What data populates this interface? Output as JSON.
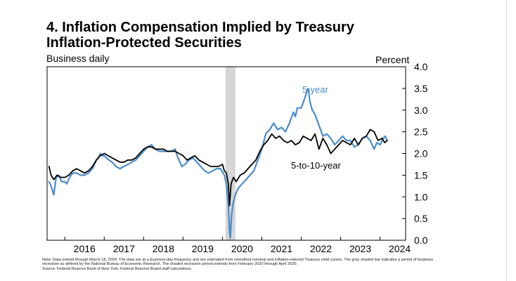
{
  "title": "4. Inflation Compensation Implied by Treasury Inflation-Protected Securities",
  "subtitle": "Business daily",
  "y_unit_label": "Percent",
  "notes": {
    "line1": "Note: Data extend through March 18, 2024. The data are at a business-day frequency and are estimated from smoothed nominal and inflation-indexed Treasury yield curves. The gray shaded bar indicates a period of business recession as defined by the National Bureau of Economic Research. The shaded recession period extends from February 2020 through April 2020.",
    "line2": "Source: Federal Reserve Bank of New York; Federal Reserve Board staff calculations."
  },
  "colors": {
    "five_year": "#4a8ccc",
    "five_to_ten_year": "#000000",
    "recession": "#d6d6d6"
  },
  "chart_data": {
    "type": "line",
    "ylim": [
      0,
      4
    ],
    "yticks": [
      "0.0",
      "0.5",
      "1.0",
      "1.5",
      "2.0",
      "2.5",
      "3.0",
      "3.5",
      "4.0"
    ],
    "xlim": [
      2015.55,
      2024.65
    ],
    "xticks": [
      "2016",
      "2017",
      "2018",
      "2019",
      "2020",
      "2021",
      "2022",
      "2023",
      "2024"
    ],
    "recession": [
      2020.08,
      2020.33
    ],
    "grid": false,
    "series": [
      {
        "name": "5-year",
        "x": [
          2015.6,
          2015.65,
          2015.72,
          2015.78,
          2015.85,
          2015.92,
          2016.0,
          2016.05,
          2016.12,
          2016.2,
          2016.3,
          2016.4,
          2016.5,
          2016.6,
          2016.7,
          2016.8,
          2016.85,
          2016.9,
          2016.95,
          2017.0,
          2017.05,
          2017.12,
          2017.2,
          2017.3,
          2017.4,
          2017.5,
          2017.6,
          2017.7,
          2017.8,
          2017.9,
          2018.0,
          2018.1,
          2018.2,
          2018.3,
          2018.4,
          2018.5,
          2018.6,
          2018.7,
          2018.8,
          2018.85,
          2018.9,
          2018.97,
          2019.05,
          2019.15,
          2019.25,
          2019.35,
          2019.45,
          2019.55,
          2019.65,
          2019.75,
          2019.85,
          2019.95,
          2020.05,
          2020.1,
          2020.15,
          2020.18,
          2020.2,
          2020.23,
          2020.27,
          2020.33,
          2020.4,
          2020.5,
          2020.6,
          2020.7,
          2020.8,
          2020.9,
          2021.0,
          2021.1,
          2021.2,
          2021.3,
          2021.4,
          2021.5,
          2021.6,
          2021.7,
          2021.8,
          2021.85,
          2021.9,
          2022.0,
          2022.1,
          2022.15,
          2022.18,
          2022.22,
          2022.28,
          2022.35,
          2022.45,
          2022.55,
          2022.65,
          2022.75,
          2022.85,
          2022.95,
          2023.05,
          2023.15,
          2023.25,
          2023.35,
          2023.45,
          2023.55,
          2023.65,
          2023.75,
          2023.85,
          2023.92,
          2024.0,
          2024.08,
          2024.13,
          2024.18
        ],
        "y": [
          1.35,
          1.25,
          1.05,
          1.45,
          1.5,
          1.35,
          1.35,
          1.3,
          1.45,
          1.55,
          1.55,
          1.5,
          1.5,
          1.55,
          1.65,
          1.85,
          1.9,
          2.0,
          1.95,
          1.95,
          1.9,
          1.85,
          1.8,
          1.7,
          1.65,
          1.7,
          1.75,
          1.8,
          1.85,
          1.95,
          2.05,
          2.15,
          2.2,
          2.1,
          2.05,
          2.05,
          2.05,
          2.05,
          2.1,
          1.95,
          1.85,
          1.7,
          1.75,
          1.85,
          1.9,
          1.8,
          1.7,
          1.6,
          1.55,
          1.6,
          1.65,
          1.65,
          1.5,
          1.3,
          0.8,
          0.2,
          0.05,
          0.55,
          0.85,
          1.05,
          1.2,
          1.3,
          1.4,
          1.5,
          1.6,
          1.85,
          2.1,
          2.45,
          2.55,
          2.7,
          2.55,
          2.6,
          2.5,
          2.7,
          2.95,
          2.85,
          3.05,
          3.05,
          3.3,
          3.45,
          3.5,
          3.2,
          3.0,
          2.9,
          2.65,
          2.4,
          2.45,
          2.35,
          2.2,
          2.3,
          2.4,
          2.3,
          2.3,
          2.15,
          2.2,
          2.35,
          2.4,
          2.3,
          2.1,
          2.25,
          2.2,
          2.35,
          2.4,
          2.3
        ]
      },
      {
        "name": "5-to-10-year",
        "x": [
          2015.6,
          2015.65,
          2015.72,
          2015.8,
          2015.9,
          2016.0,
          2016.1,
          2016.2,
          2016.3,
          2016.4,
          2016.5,
          2016.6,
          2016.7,
          2016.8,
          2016.9,
          2017.0,
          2017.1,
          2017.2,
          2017.3,
          2017.4,
          2017.5,
          2017.6,
          2017.7,
          2017.8,
          2017.9,
          2018.0,
          2018.1,
          2018.2,
          2018.3,
          2018.4,
          2018.5,
          2018.6,
          2018.7,
          2018.8,
          2018.9,
          2019.0,
          2019.1,
          2019.2,
          2019.3,
          2019.4,
          2019.5,
          2019.6,
          2019.7,
          2019.8,
          2019.9,
          2020.0,
          2020.05,
          2020.1,
          2020.15,
          2020.18,
          2020.22,
          2020.28,
          2020.35,
          2020.45,
          2020.55,
          2020.65,
          2020.75,
          2020.85,
          2020.95,
          2021.05,
          2021.15,
          2021.25,
          2021.35,
          2021.45,
          2021.55,
          2021.65,
          2021.75,
          2021.85,
          2021.95,
          2022.05,
          2022.15,
          2022.25,
          2022.35,
          2022.45,
          2022.55,
          2022.65,
          2022.75,
          2022.85,
          2022.95,
          2023.05,
          2023.15,
          2023.25,
          2023.35,
          2023.45,
          2023.55,
          2023.65,
          2023.75,
          2023.85,
          2023.95,
          2024.05,
          2024.12,
          2024.18
        ],
        "y": [
          1.7,
          1.5,
          1.4,
          1.5,
          1.45,
          1.45,
          1.5,
          1.6,
          1.65,
          1.6,
          1.55,
          1.6,
          1.7,
          1.85,
          1.95,
          2.0,
          1.95,
          1.9,
          1.85,
          1.8,
          1.8,
          1.85,
          1.85,
          1.9,
          2.0,
          2.1,
          2.15,
          2.15,
          2.1,
          2.1,
          2.1,
          2.05,
          2.05,
          2.05,
          2.0,
          1.95,
          1.85,
          1.9,
          1.95,
          1.85,
          1.8,
          1.75,
          1.7,
          1.7,
          1.7,
          1.75,
          1.6,
          1.55,
          1.3,
          0.8,
          1.3,
          1.45,
          1.35,
          1.5,
          1.55,
          1.65,
          1.75,
          1.85,
          2.05,
          2.2,
          2.3,
          2.45,
          2.35,
          2.4,
          2.3,
          2.25,
          2.3,
          2.2,
          2.25,
          2.4,
          2.35,
          2.3,
          2.45,
          2.1,
          2.35,
          2.2,
          2.0,
          2.1,
          2.2,
          2.3,
          2.25,
          2.2,
          2.35,
          2.2,
          2.35,
          2.4,
          2.55,
          2.5,
          2.3,
          2.35,
          2.25,
          2.3
        ]
      }
    ]
  }
}
